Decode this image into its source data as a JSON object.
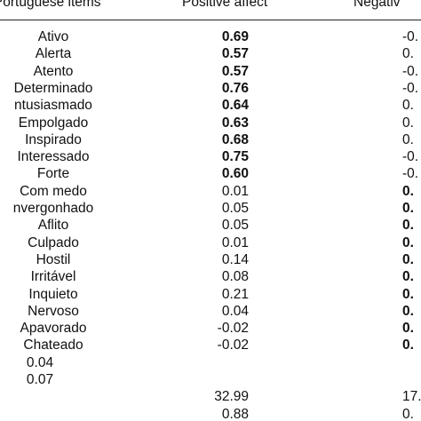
{
  "header": {
    "items": "n Portuguese items",
    "positive": "Positive affect",
    "negative": "Negativ"
  },
  "rows": [
    {
      "item": "Ativo",
      "pos": "0.69",
      "neg": "-0.",
      "posBold": true,
      "negBold": false
    },
    {
      "item": "Alerta",
      "pos": "0.57",
      "neg": "0.",
      "posBold": true,
      "negBold": false
    },
    {
      "item": "Atento",
      "pos": "0.57",
      "neg": "-0.",
      "posBold": true,
      "negBold": false
    },
    {
      "item": "Determinado",
      "pos": "0.76",
      "neg": "-0.",
      "posBold": true,
      "negBold": false
    },
    {
      "item": "ntusiasmado",
      "pos": "0.64",
      "neg": "0.",
      "posBold": true,
      "negBold": false
    },
    {
      "item": "Empolgado",
      "pos": "0.63",
      "neg": "0.",
      "posBold": true,
      "negBold": false
    },
    {
      "item": "Inspirado",
      "pos": "0.68",
      "neg": "0.",
      "posBold": true,
      "negBold": false
    },
    {
      "item": "Interessado",
      "pos": "0.75",
      "neg": "-0.",
      "posBold": true,
      "negBold": false
    },
    {
      "item": "Forte",
      "pos": "0.60",
      "neg": "-0.",
      "posBold": true,
      "negBold": false
    },
    {
      "item": "Com medo",
      "pos": "0.01",
      "neg": "0.",
      "posBold": false,
      "negBold": true
    },
    {
      "item": "nvergonhado",
      "pos": "0.05",
      "neg": "0.",
      "posBold": false,
      "negBold": true
    },
    {
      "item": "Aflito",
      "pos": "0.05",
      "neg": "0.",
      "posBold": false,
      "negBold": true
    },
    {
      "item": "Culpado",
      "pos": "0.01",
      "neg": "0.",
      "posBold": false,
      "negBold": true
    },
    {
      "item": "Hostil",
      "pos": "0.14",
      "neg": "0.",
      "posBold": false,
      "negBold": true
    },
    {
      "item": "Irritável",
      "pos": "0.08",
      "neg": "0.",
      "posBold": false,
      "negBold": true
    },
    {
      "item": "Inquieto",
      "pos": "0.21",
      "neg": "0.",
      "posBold": false,
      "negBold": true
    },
    {
      "item": "Nervoso",
      "pos": "0.04",
      "neg": "0.",
      "posBold": false,
      "negBold": true
    },
    {
      "item": "Apavorado",
      "pos": "-0.02",
      "neg": "0.",
      "posBold": false,
      "negBold": true
    },
    {
      "item": "Chateado",
      "pos": "-0.02",
      "neg": "0.",
      "posBold": false,
      "negBold": true
    },
    {
      "item": "0.04",
      "pos": "",
      "neg": "",
      "posBold": false,
      "negBold": false
    },
    {
      "item": "0.07",
      "pos": "",
      "neg": "",
      "posBold": false,
      "negBold": false
    },
    {
      "item": "",
      "pos": "32.99",
      "neg": "17.",
      "posBold": false,
      "negBold": false
    },
    {
      "item": "",
      "pos": "0.88",
      "neg": "0.",
      "posBold": false,
      "negBold": false
    }
  ]
}
